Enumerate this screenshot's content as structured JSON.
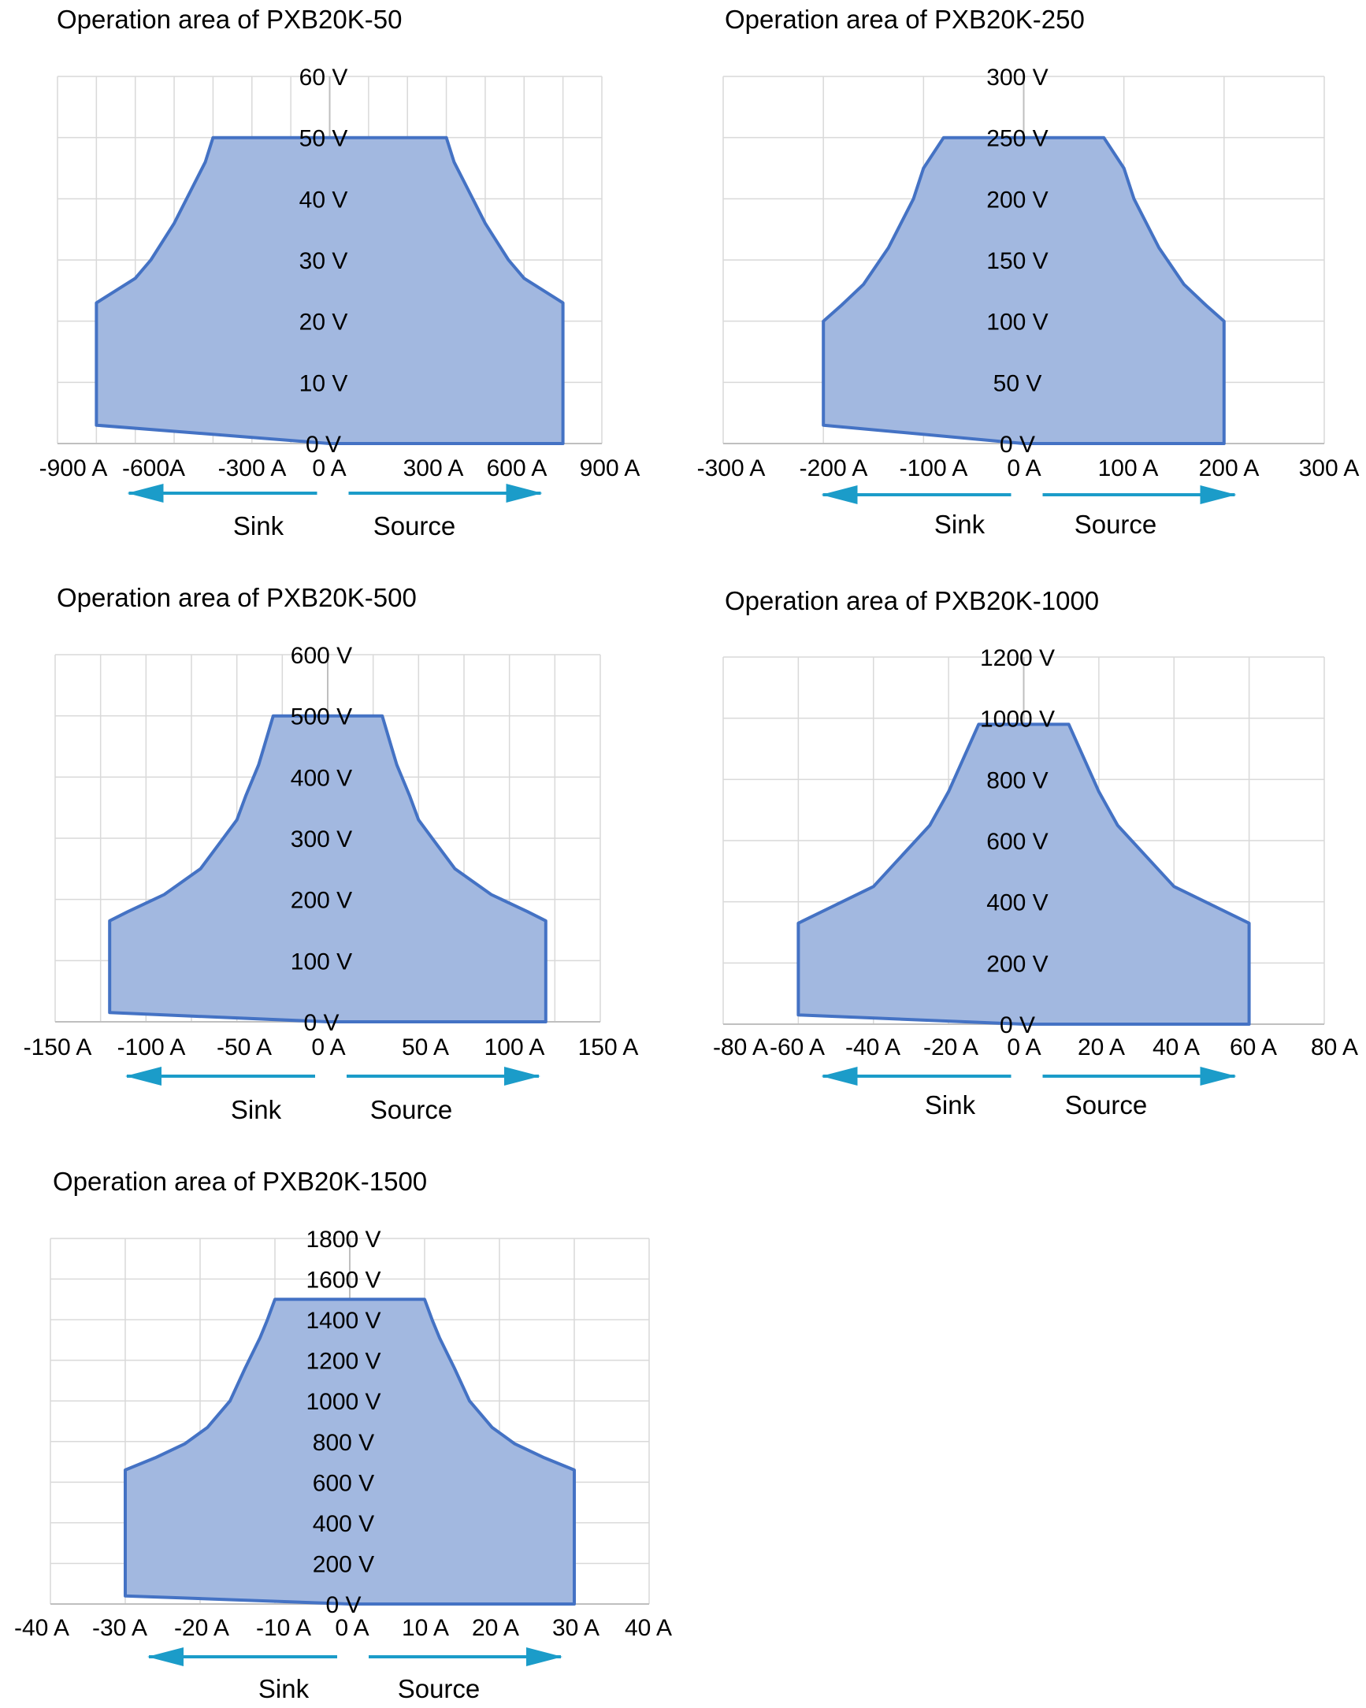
{
  "theme": {
    "area_fill": "#a2b8e0",
    "area_stroke": "#4472c4",
    "arrow": "#1b9cc9",
    "grid": "#d9d9d9",
    "axis": "#bfbfbf",
    "text": "#000000"
  },
  "chart_data": [
    {
      "type": "area",
      "title": "Operation area of PXB20K-50",
      "xlabel": "",
      "ylabel": "",
      "x_ticks": [
        "-900 A",
        "-600A",
        "-300 A",
        "0 A",
        "300 A",
        "600 A",
        "900 A"
      ],
      "y_ticks": [
        "0 V",
        "10 V",
        "20 V",
        "30 V",
        "40 V",
        "50 V",
        "60 V"
      ],
      "xlim": [
        -1050,
        1050
      ],
      "ylim": [
        0,
        60
      ],
      "x_grid_step": 150,
      "y_grid_step": 10,
      "grid": true,
      "boundary": [
        [
          -900,
          3
        ],
        [
          -900,
          23
        ],
        [
          -750,
          27
        ],
        [
          -690,
          30
        ],
        [
          -600,
          36
        ],
        [
          -540,
          41
        ],
        [
          -480,
          46
        ],
        [
          -450,
          50
        ],
        [
          450,
          50
        ],
        [
          480,
          46
        ],
        [
          540,
          41
        ],
        [
          600,
          36
        ],
        [
          690,
          30
        ],
        [
          750,
          27
        ],
        [
          900,
          23
        ],
        [
          900,
          0
        ],
        [
          0,
          0
        ]
      ],
      "sink_label": "Sink",
      "source_label": "Source"
    },
    {
      "type": "area",
      "title": "Operation area of PXB20K-250",
      "xlabel": "",
      "ylabel": "",
      "x_ticks": [
        "-300 A",
        "-200 A",
        "-100 A",
        "0 A",
        "100 A",
        "200 A",
        "300 A"
      ],
      "y_ticks": [
        "0 V",
        "50 V",
        "100 V",
        "150 V",
        "200 V",
        "250 V",
        "300 V"
      ],
      "xlim": [
        -300,
        300
      ],
      "ylim": [
        0,
        300
      ],
      "x_grid_step": 100,
      "y_grid_step": 50,
      "grid": true,
      "boundary": [
        [
          -200,
          15
        ],
        [
          -200,
          100
        ],
        [
          -182,
          113
        ],
        [
          -160,
          130
        ],
        [
          -135,
          160
        ],
        [
          -110,
          200
        ],
        [
          -100,
          225
        ],
        [
          -80,
          250
        ],
        [
          80,
          250
        ],
        [
          100,
          225
        ],
        [
          110,
          200
        ],
        [
          135,
          160
        ],
        [
          160,
          130
        ],
        [
          182,
          113
        ],
        [
          200,
          100
        ],
        [
          200,
          0
        ],
        [
          0,
          0
        ]
      ],
      "sink_label": "Sink",
      "source_label": "Source"
    },
    {
      "type": "area",
      "title": "Operation area of PXB20K-500",
      "xlabel": "",
      "ylabel": "",
      "x_ticks": [
        "-150 A",
        "-100 A",
        "-50 A",
        "0 A",
        "50 A",
        "100 A",
        "150 A"
      ],
      "y_ticks": [
        "0 V",
        "100 V",
        "200 V",
        "300 V",
        "400 V",
        "500 V",
        "600 V"
      ],
      "xlim": [
        -150,
        150
      ],
      "ylim": [
        0,
        600
      ],
      "x_grid_step": 25,
      "y_grid_step": 100,
      "grid": true,
      "boundary": [
        [
          -120,
          15
        ],
        [
          -120,
          165
        ],
        [
          -110,
          180
        ],
        [
          -90,
          208
        ],
        [
          -70,
          250
        ],
        [
          -60,
          290
        ],
        [
          -50,
          330
        ],
        [
          -45,
          370
        ],
        [
          -38,
          420
        ],
        [
          -35,
          450
        ],
        [
          -30,
          500
        ],
        [
          30,
          500
        ],
        [
          35,
          450
        ],
        [
          38,
          420
        ],
        [
          45,
          370
        ],
        [
          50,
          330
        ],
        [
          60,
          290
        ],
        [
          70,
          250
        ],
        [
          90,
          208
        ],
        [
          110,
          180
        ],
        [
          120,
          165
        ],
        [
          120,
          0
        ],
        [
          0,
          0
        ]
      ],
      "sink_label": "Sink",
      "source_label": "Source"
    },
    {
      "type": "area",
      "title": "Operation area of PXB20K-1000",
      "xlabel": "",
      "ylabel": "",
      "x_ticks": [
        "-80 A",
        "-60 A",
        "-40 A",
        "-20 A",
        "0 A",
        "20 A",
        "40 A",
        "60 A",
        "80 A"
      ],
      "y_ticks": [
        "0 V",
        "200 V",
        "400 V",
        "600 V",
        "800 V",
        "1000 V",
        "1200 V"
      ],
      "xlim": [
        -80,
        80
      ],
      "ylim": [
        0,
        1200
      ],
      "x_grid_step": 20,
      "y_grid_step": 200,
      "grid": true,
      "boundary": [
        [
          -60,
          30
        ],
        [
          -60,
          330
        ],
        [
          -50,
          390
        ],
        [
          -40,
          450
        ],
        [
          -34,
          530
        ],
        [
          -25,
          650
        ],
        [
          -20,
          760
        ],
        [
          -16,
          870
        ],
        [
          -12,
          980
        ],
        [
          12,
          980
        ],
        [
          16,
          870
        ],
        [
          20,
          760
        ],
        [
          25,
          650
        ],
        [
          34,
          530
        ],
        [
          40,
          450
        ],
        [
          50,
          390
        ],
        [
          60,
          330
        ],
        [
          60,
          0
        ],
        [
          0,
          0
        ]
      ],
      "sink_label": "Sink",
      "source_label": "Source"
    },
    {
      "type": "area",
      "title": "Operation area of PXB20K-1500",
      "xlabel": "",
      "ylabel": "",
      "x_ticks": [
        "-40 A",
        "-30 A",
        "-20 A",
        "-10 A",
        "0 A",
        "10 A",
        "20 A",
        "30 A",
        "40 A"
      ],
      "y_ticks": [
        "0 V",
        "200 V",
        "400 V",
        "600 V",
        "800 V",
        "1000 V",
        "1200 V",
        "1400 V",
        "1600 V",
        "1800 V"
      ],
      "xlim": [
        -40,
        40
      ],
      "ylim": [
        0,
        1800
      ],
      "x_grid_step": 10,
      "y_grid_step": 200,
      "grid": true,
      "boundary": [
        [
          -30,
          40
        ],
        [
          -30,
          660
        ],
        [
          -26,
          720
        ],
        [
          -22,
          790
        ],
        [
          -19,
          870
        ],
        [
          -16,
          1000
        ],
        [
          -14,
          1160
        ],
        [
          -12,
          1310
        ],
        [
          -11,
          1400
        ],
        [
          -10,
          1500
        ],
        [
          10,
          1500
        ],
        [
          11,
          1400
        ],
        [
          12,
          1310
        ],
        [
          14,
          1160
        ],
        [
          16,
          1000
        ],
        [
          19,
          870
        ],
        [
          22,
          790
        ],
        [
          26,
          720
        ],
        [
          30,
          660
        ],
        [
          30,
          0
        ],
        [
          0,
          0
        ]
      ],
      "sink_label": "Sink",
      "source_label": "Source"
    }
  ]
}
